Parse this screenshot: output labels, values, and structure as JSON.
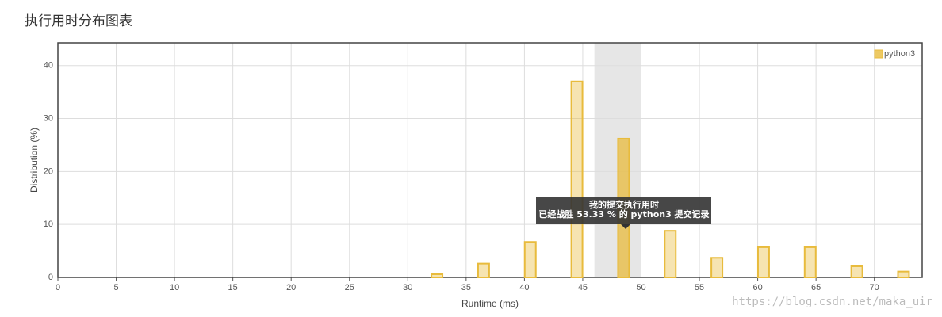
{
  "chart_data": {
    "type": "bar",
    "title": "执行用时分布图表",
    "x_label": "Runtime (ms)",
    "y_label": "Distribution (%)",
    "x": [
      32.5,
      36.5,
      40.5,
      44.5,
      48.5,
      52.5,
      56.5,
      60.5,
      64.5,
      68.5,
      72.5
    ],
    "series": [
      {
        "name": "python3",
        "color": "#e8bb3c",
        "values": [
          0.6,
          2.6,
          6.7,
          37,
          26.2,
          8.8,
          3.7,
          5.7,
          5.7,
          2.1,
          1.1
        ]
      }
    ],
    "xlim": [
      0,
      74.1
    ],
    "ylim": [
      0,
      44.3
    ],
    "xticks": [
      0,
      5,
      10,
      15,
      20,
      25,
      30,
      35,
      40,
      45,
      50,
      55,
      60,
      65,
      70
    ],
    "yticks": [
      0,
      10,
      20,
      30,
      40
    ],
    "grid": true,
    "legend": "top-right",
    "highlight_xlim": [
      46,
      50
    ],
    "tooltip": [
      "我的提交执行用时",
      "已经战胜 53.33 % 的 python3 提交记录"
    ],
    "watermark": "https://blog.csdn.net/maka_uir"
  }
}
